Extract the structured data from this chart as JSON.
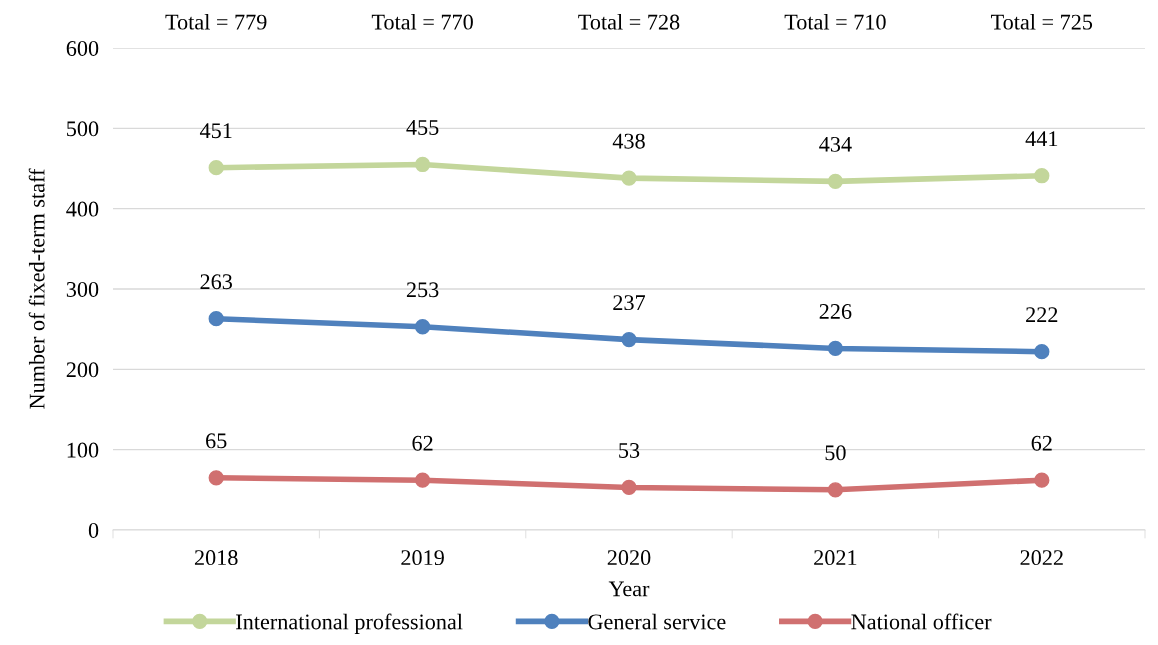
{
  "chart_data": {
    "type": "line",
    "xlabel": "Year",
    "ylabel": "Number of fixed-term staff",
    "categories": [
      "2018",
      "2019",
      "2020",
      "2021",
      "2022"
    ],
    "series": [
      {
        "name": "International professional",
        "color": "#c3d69b",
        "values": [
          451,
          455,
          438,
          434,
          441
        ]
      },
      {
        "name": "General service",
        "color": "#4f81bd",
        "values": [
          263,
          253,
          237,
          226,
          222
        ]
      },
      {
        "name": "National officer",
        "color": "#d07070",
        "values": [
          65,
          62,
          53,
          50,
          62
        ]
      }
    ],
    "totals": [
      "Total = 779",
      "Total = 770",
      "Total = 728",
      "Total = 710",
      "Total = 725"
    ],
    "ylim": [
      0,
      600
    ],
    "yticks": [
      0,
      100,
      200,
      300,
      400,
      500,
      600
    ],
    "grid": "y",
    "legend": "bottom",
    "marker": "circle",
    "line_style": "solid",
    "data_labels": true
  }
}
